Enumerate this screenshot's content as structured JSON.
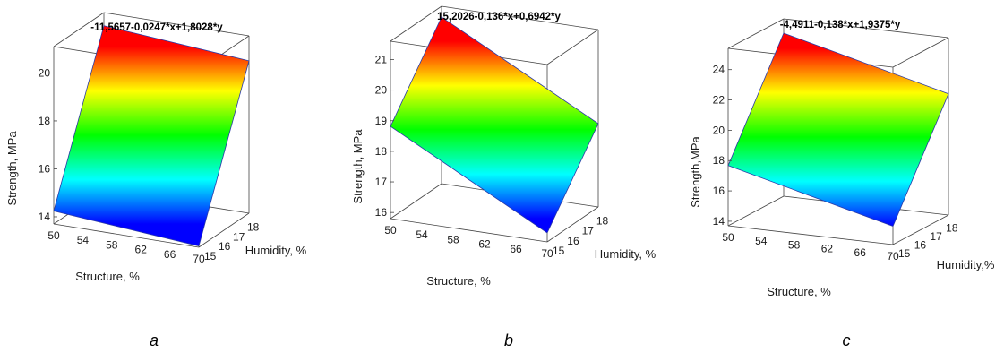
{
  "chart_data": [
    {
      "type": "surface3d",
      "letter": "a",
      "title": "-11,5657-0,0247*x+1,8028*y",
      "xlabel": "Structure, %",
      "ylabel": "Humidity, %",
      "zlabel": "Strength, MPa",
      "xticks": [
        "50",
        "54",
        "58",
        "62",
        "66",
        "70"
      ],
      "yticks": [
        "15",
        "16",
        "17",
        "18"
      ],
      "zticks": [
        "14",
        "16",
        "18",
        "20"
      ],
      "xlim": [
        50,
        70
      ],
      "ylim": [
        15,
        18.5
      ],
      "zlim": [
        13.7,
        21.1
      ],
      "equation": {
        "intercept": -11.5657,
        "cx": -0.0247,
        "cy": 1.8028
      },
      "colormap": [
        "#0000ff",
        "#00ffff",
        "#00ff00",
        "#ffff00",
        "#ff0000"
      ]
    },
    {
      "type": "surface3d",
      "letter": "b",
      "title": "15,2026-0,136*x+0,6942*y",
      "xlabel": "Structure, %",
      "ylabel": "Humidity, %",
      "zlabel": "Strength, MPa",
      "xticks": [
        "50",
        "54",
        "58",
        "62",
        "66",
        "70"
      ],
      "yticks": [
        "15",
        "16",
        "17",
        "18"
      ],
      "zticks": [
        "16",
        "17",
        "18",
        "19",
        "20",
        "21"
      ],
      "xlim": [
        50,
        70
      ],
      "ylim": [
        15,
        18.5
      ],
      "zlim": [
        15.8,
        21.6
      ],
      "equation": {
        "intercept": 15.2026,
        "cx": -0.136,
        "cy": 0.6942
      },
      "colormap": [
        "#0000ff",
        "#00ffff",
        "#00ff00",
        "#ffff00",
        "#ff0000"
      ]
    },
    {
      "type": "surface3d",
      "letter": "c",
      "title": "-4,4911-0,138*x+1,9375*y",
      "xlabel": "Structure, %",
      "ylabel": "Humidity,%",
      "zlabel": "Strength,MPa",
      "xticks": [
        "50",
        "54",
        "58",
        "62",
        "66",
        "70"
      ],
      "yticks": [
        "15",
        "16",
        "17",
        "18"
      ],
      "zticks": [
        "14",
        "16",
        "18",
        "20",
        "22",
        "24"
      ],
      "xlim": [
        50,
        70
      ],
      "ylim": [
        15,
        18.5
      ],
      "zlim": [
        13.7,
        25.4
      ],
      "equation": {
        "intercept": -4.4911,
        "cx": -0.138,
        "cy": 1.9375
      },
      "colormap": [
        "#0000ff",
        "#00ffff",
        "#00ff00",
        "#ffff00",
        "#ff0000"
      ]
    }
  ]
}
